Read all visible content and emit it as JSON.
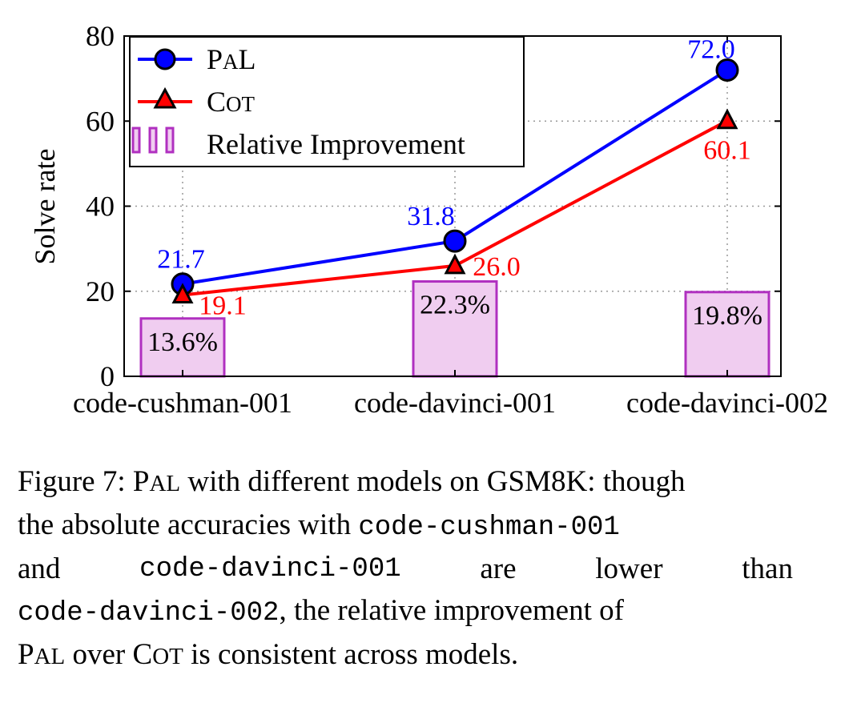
{
  "chart_data": {
    "type": "line+bar",
    "ylabel": "Solve rate",
    "ylim": [
      0,
      80
    ],
    "yticks": [
      "0",
      "20",
      "40",
      "60",
      "80"
    ],
    "categories": [
      "code-cushman-001",
      "code-davinci-001",
      "code-davinci-002"
    ],
    "grid": "dotted",
    "legend_position": "top-left",
    "series": [
      {
        "name": "PAL",
        "name_parts": [
          "P",
          "A",
          "L"
        ],
        "kind": "line",
        "marker": "circle",
        "color": "#0000ff",
        "marker_fill": "#0000ff",
        "values": [
          21.7,
          31.8,
          72.0
        ],
        "labels": [
          "21.7",
          "31.8",
          "72.0"
        ]
      },
      {
        "name": "COT",
        "name_parts": [
          "C",
          "O",
          "T"
        ],
        "kind": "line",
        "marker": "triangle",
        "color": "#ff0000",
        "marker_fill": "#ff0000",
        "values": [
          19.1,
          26.0,
          60.1
        ],
        "labels": [
          "19.1",
          "26.0",
          "60.1"
        ]
      },
      {
        "name": "Relative Improvement",
        "kind": "bar",
        "color": "#b030c0",
        "fill": "#f0cdf0",
        "values": [
          13.6,
          22.3,
          19.8
        ],
        "labels": [
          "13.6%",
          "22.3%",
          "19.8%"
        ]
      }
    ]
  },
  "caption": {
    "line1": {
      "a": "Figure 7: ",
      "pal_p": "P",
      "pal_rest": "AL",
      "b": " with different models on ",
      "gsm": "GSM8K",
      "c": ": though"
    },
    "line2": {
      "a": "the absolute accuracies with ",
      "code": "code-cushman-001"
    },
    "line3": {
      "w1": "and",
      "code": "code-davinci-001",
      "w2": "are",
      "w3": "lower",
      "w4": "than"
    },
    "line4": {
      "code": "code-davinci-002",
      "a": ", the relative improvement of"
    },
    "line5": {
      "pal_p": "P",
      "pal_rest": "AL",
      "a": " over ",
      "cot_c": "C",
      "cot_rest": "OT",
      "b": " is consistent across models."
    }
  }
}
